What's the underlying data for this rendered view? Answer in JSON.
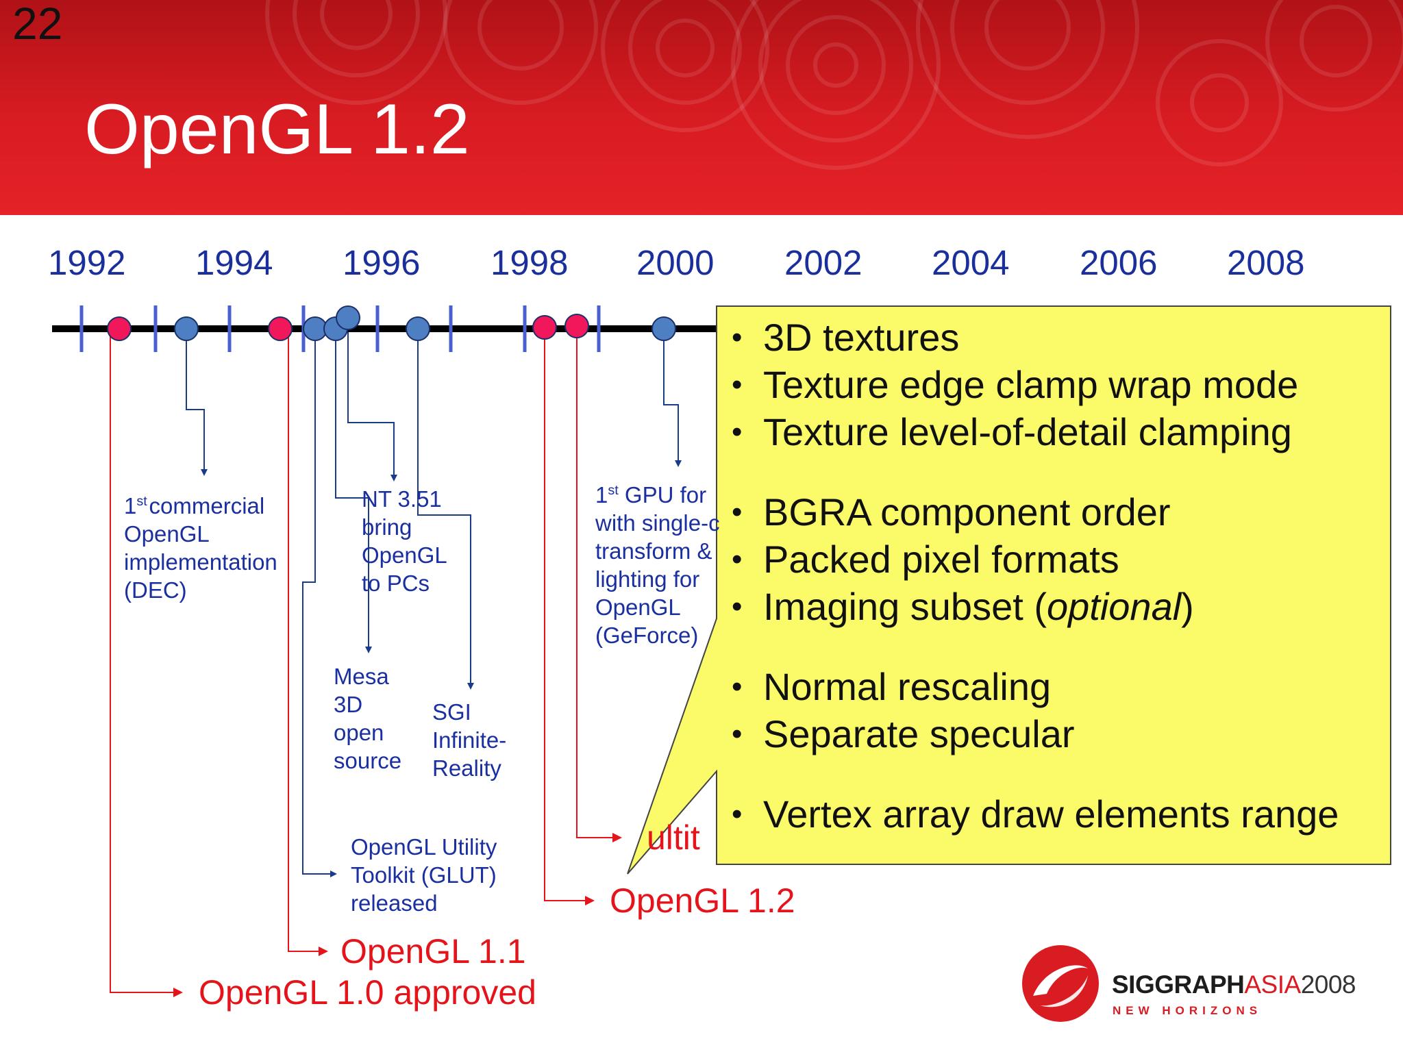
{
  "slide_number": "22",
  "title": "OpenGL 1.2",
  "years": [
    "1992",
    "1994",
    "1996",
    "1998",
    "2000",
    "2002",
    "2004",
    "2006",
    "2008"
  ],
  "events": {
    "dec": {
      "sup": "st",
      "line1": "commercial",
      "line2": "OpenGL",
      "line3": "implementation",
      "line4": "(DEC)",
      "prefix": "1"
    },
    "nt": {
      "line1": "NT 3.51",
      "line2": "bring",
      "line3": "OpenGL",
      "line4": "to PCs"
    },
    "mesa": {
      "line1": "Mesa",
      "line2": "3D",
      "line3": "open",
      "line4": "source"
    },
    "sgi": {
      "line1": "SGI",
      "line2": "Infinite-",
      "line3": "Reality"
    },
    "glut": {
      "line1": "OpenGL Utility",
      "line2": "Toolkit (GLUT)",
      "line3": "released"
    },
    "gpu": {
      "prefix": "1",
      "sup": "st",
      "line1": "GPU for",
      "line2": "with single-c",
      "line3": "transform &",
      "line4": "lighting for",
      "line5": "OpenGL",
      "line6": "(GeForce)"
    }
  },
  "releases": {
    "v10": "OpenGL 1.0 approved",
    "v11": "OpenGL 1.1",
    "v12": "OpenGL 1.2",
    "multi_partial": "ultit"
  },
  "callout_items": [
    "3D textures",
    "Texture edge clamp wrap mode",
    "Texture level-of-detail clamping",
    "BGRA component order",
    "Packed pixel formats",
    "Imaging subset (",
    "Normal rescaling",
    "Separate specular",
    "Vertex array draw elements range"
  ],
  "callout_optional_word": "optional",
  "callout_close_paren": ")",
  "logo": {
    "siggraph": "SIGGRAPH",
    "asia": "ASIA",
    "year": "2008",
    "tagline": "NEW HORIZONS"
  },
  "colors": {
    "header_red": "#d81c22",
    "timeline_blue": "#1a2fa0",
    "release_red": "#e5141b",
    "marker_blue": "#4f7fc3",
    "marker_pink": "#f0185a",
    "callout_yellow": "#fbfb6a"
  }
}
